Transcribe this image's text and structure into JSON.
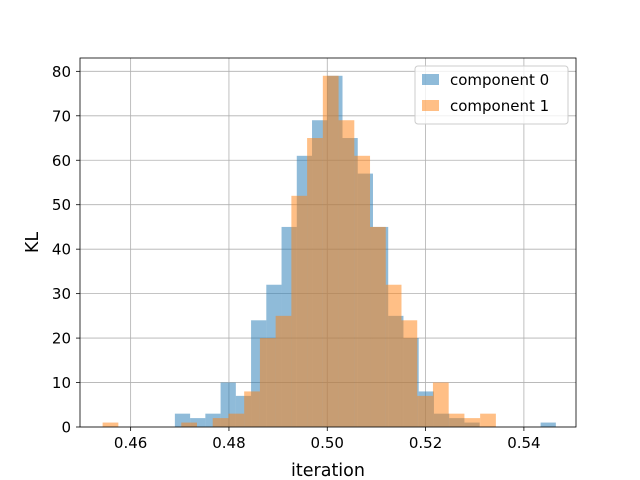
{
  "chart_data": {
    "type": "histogram",
    "xlabel": "iteration",
    "ylabel": "KL",
    "xlim": [
      0.4497,
      0.5506
    ],
    "ylim": [
      0,
      83
    ],
    "xticks": [
      0.46,
      0.48,
      0.5,
      0.52,
      0.54
    ],
    "xtick_labels": [
      "0.46",
      "0.48",
      "0.50",
      "0.52",
      "0.54"
    ],
    "yticks": [
      0,
      10,
      20,
      30,
      40,
      50,
      60,
      70,
      80
    ],
    "ytick_labels": [
      "0",
      "10",
      "20",
      "30",
      "40",
      "50",
      "60",
      "70",
      "80"
    ],
    "grid": true,
    "legend_position": "upper right",
    "series": [
      {
        "name": "component 0",
        "color": "#1f77b4",
        "opacity": 0.5,
        "bins": [
          [
            0.469,
            0.4721,
            3
          ],
          [
            0.4721,
            0.4752,
            2
          ],
          [
            0.4752,
            0.4783,
            3
          ],
          [
            0.4783,
            0.4814,
            10
          ],
          [
            0.4814,
            0.4845,
            7
          ],
          [
            0.4845,
            0.4876,
            24
          ],
          [
            0.4876,
            0.4907,
            32
          ],
          [
            0.4907,
            0.4938,
            45
          ],
          [
            0.4938,
            0.4969,
            61
          ],
          [
            0.4969,
            0.5,
            69
          ],
          [
            0.5,
            0.5031,
            79
          ],
          [
            0.5031,
            0.5062,
            65
          ],
          [
            0.5062,
            0.5093,
            57
          ],
          [
            0.5093,
            0.5124,
            45
          ],
          [
            0.5124,
            0.5155,
            25
          ],
          [
            0.5155,
            0.5186,
            20
          ],
          [
            0.5186,
            0.5217,
            8
          ],
          [
            0.5217,
            0.5248,
            3
          ],
          [
            0.5248,
            0.5279,
            2
          ],
          [
            0.5279,
            0.531,
            1
          ],
          [
            0.5434,
            0.5465,
            1
          ]
        ]
      },
      {
        "name": "component 1",
        "color": "#ff7f0e",
        "opacity": 0.5,
        "bins": [
          [
            0.4543,
            0.4575,
            1
          ],
          [
            0.4703,
            0.4735,
            1
          ],
          [
            0.4767,
            0.4799,
            2
          ],
          [
            0.4799,
            0.4831,
            3
          ],
          [
            0.4831,
            0.4863,
            8
          ],
          [
            0.4863,
            0.4895,
            20
          ],
          [
            0.4895,
            0.4927,
            25
          ],
          [
            0.4927,
            0.4959,
            52
          ],
          [
            0.4959,
            0.4991,
            65
          ],
          [
            0.4991,
            0.5023,
            79
          ],
          [
            0.5023,
            0.5055,
            69
          ],
          [
            0.5055,
            0.5087,
            61
          ],
          [
            0.5087,
            0.5119,
            45
          ],
          [
            0.5119,
            0.5151,
            32
          ],
          [
            0.5151,
            0.5183,
            24
          ],
          [
            0.5183,
            0.5215,
            7
          ],
          [
            0.5215,
            0.5247,
            10
          ],
          [
            0.5247,
            0.5279,
            3
          ],
          [
            0.5279,
            0.5311,
            2
          ],
          [
            0.5311,
            0.5343,
            3
          ]
        ]
      }
    ]
  }
}
